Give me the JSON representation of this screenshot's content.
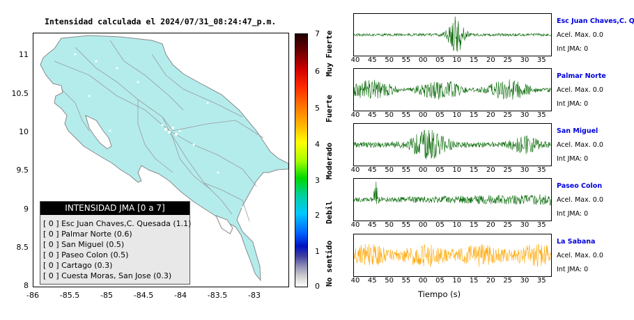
{
  "map": {
    "title": "Intensidad calculada el 2024/07/31_08:24:47_p.m.",
    "y_ticks": [
      "11",
      "10.5",
      "10",
      "9.5",
      "9",
      "8.5",
      "8"
    ],
    "x_ticks": [
      "-86",
      "-85.5",
      "-85",
      "-84.5",
      "-84",
      "-83.5",
      "-83"
    ],
    "land_color": "#b4ecec"
  },
  "colorbar": {
    "values": [
      "7",
      "6",
      "5",
      "4",
      "3",
      "2",
      "1",
      "0"
    ],
    "labels": [
      "Muy Fuerte",
      "Fuerte",
      "Moderado",
      "Debil",
      "No sentido"
    ]
  },
  "legend": {
    "title": "INTENSIDAD JMA [0 a 7]",
    "items": [
      "[ 0 ]  Esc Juan Chaves,C. Quesada (1.1)",
      "[ 0 ]  Palmar Norte (0.6)",
      "[ 0 ]  San Miguel (0.5)",
      "[ 0 ]  Paseo Colon (0.5)",
      "[ 0 ]  Cartago (0.3)",
      "[ 0 ]  Cuesta Moras, San Jose (0.3)"
    ]
  },
  "stations": [
    {
      "name": "Esc Juan Chaves,C. Qu",
      "accel": "Acel. Max. 0.0",
      "int": "Int JMA: 0",
      "color": "#006600",
      "ticks": [
        "40",
        "45",
        "50",
        "55",
        "00",
        "05",
        "10",
        "15",
        "20",
        "25",
        "30",
        "35"
      ]
    },
    {
      "name": "Palmar Norte",
      "accel": "Acel. Max. 0.0",
      "int": "Int JMA: 0",
      "color": "#006600",
      "ticks": [
        "40",
        "45",
        "50",
        "55",
        "00",
        "05",
        "10",
        "15",
        "20",
        "25",
        "30",
        "35"
      ]
    },
    {
      "name": "San Miguel",
      "accel": "Acel. Max. 0.0",
      "int": "Int JMA: 0",
      "color": "#006600",
      "ticks": [
        "40",
        "45",
        "50",
        "55",
        "00",
        "05",
        "10",
        "15",
        "20",
        "25",
        "30",
        "35"
      ]
    },
    {
      "name": "Paseo Colon",
      "accel": "Acel. Max. 0.0",
      "int": "Int JMA: 0",
      "color": "#006600",
      "ticks": [
        "40",
        "45",
        "50",
        "55",
        "00",
        "05",
        "10",
        "15",
        "20",
        "25",
        "30",
        "35"
      ]
    },
    {
      "name": "La Sabana",
      "accel": "Acel. Max. 0.0",
      "int": "Int JMA: 0",
      "color": "#ffa500",
      "ticks": [
        "40",
        "45",
        "50",
        "55",
        "00",
        "05",
        "10",
        "15",
        "20",
        "25",
        "30",
        "35"
      ]
    }
  ],
  "time_axis_label": "Tiempo (s)"
}
